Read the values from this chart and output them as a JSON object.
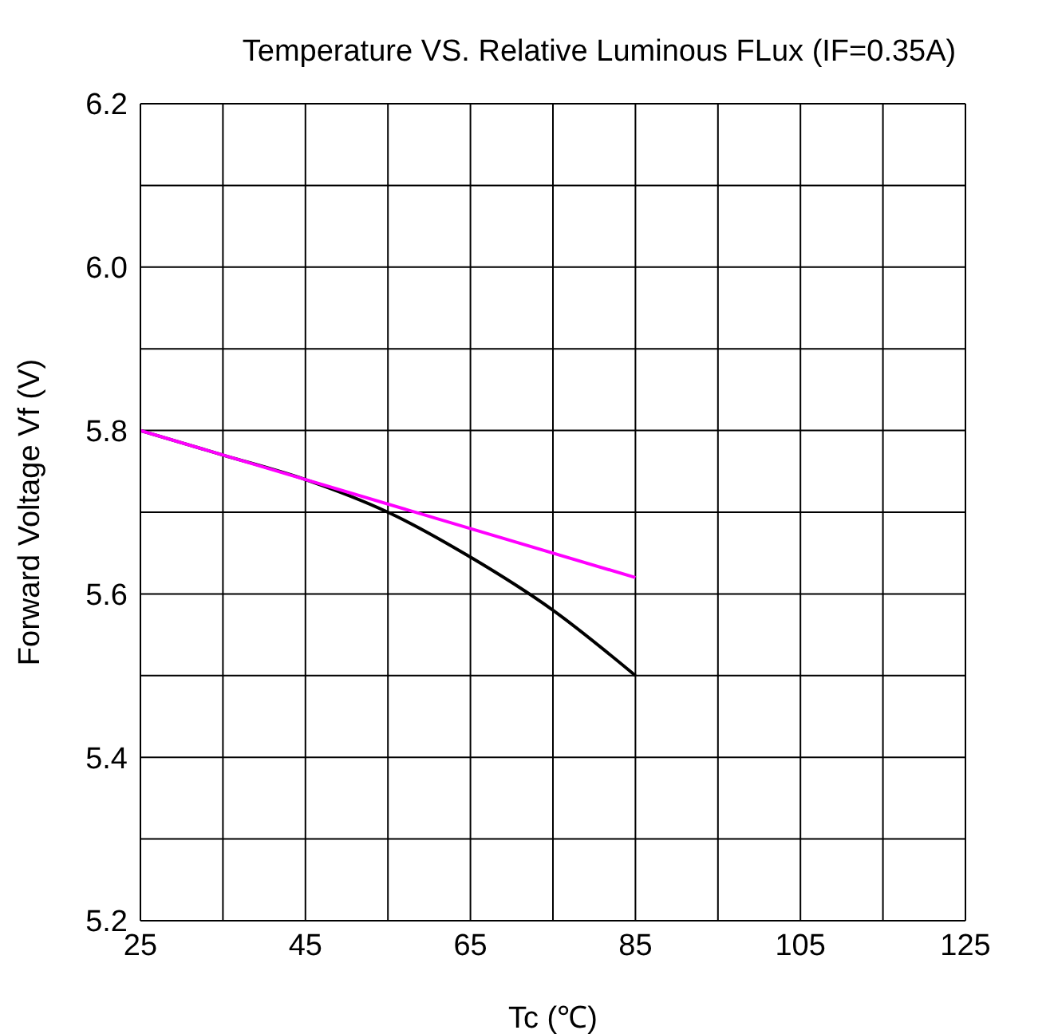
{
  "chart_data": {
    "type": "line",
    "title": "Temperature VS.  Relative Luminous FLux (IF=0.35A)",
    "xlabel": "Tc (℃)",
    "ylabel": "Forward Voltage  Vf  (V)",
    "x": [
      25,
      35,
      45,
      55,
      65,
      75,
      85
    ],
    "series": [
      {
        "color": "#000000",
        "values": [
          5.8,
          5.77,
          5.74,
          5.7,
          5.645,
          5.58,
          5.5
        ]
      },
      {
        "color": "#ff00ff",
        "x": [
          25,
          85
        ],
        "values": [
          5.8,
          5.62
        ]
      }
    ],
    "xlim": [
      25,
      125
    ],
    "xticks": [
      25,
      {
        "value": 35,
        "label": null
      },
      45,
      {
        "value": 55,
        "label": null
      },
      65,
      {
        "value": 75,
        "label": null
      },
      85,
      {
        "value": 95,
        "label": null
      },
      105,
      {
        "value": 115,
        "label": null
      },
      125
    ],
    "ylim": [
      5.2,
      6.2
    ],
    "yticks": [
      {
        "value": 5.2,
        "label": "5.2"
      },
      {
        "value": 5.3,
        "label": null
      },
      {
        "value": 5.4,
        "label": "5.4"
      },
      {
        "value": 5.5,
        "label": null
      },
      {
        "value": 5.6,
        "label": "5.6"
      },
      {
        "value": 5.7,
        "label": null
      },
      {
        "value": 5.8,
        "label": "5.8"
      },
      {
        "value": 5.9,
        "label": null
      },
      {
        "value": 6.0,
        "label": "6.0"
      },
      {
        "value": 6.1,
        "label": null
      },
      {
        "value": 6.2,
        "label": "6.2"
      }
    ],
    "grid": true,
    "legend": false,
    "marker": "none",
    "line_style": "solid"
  }
}
